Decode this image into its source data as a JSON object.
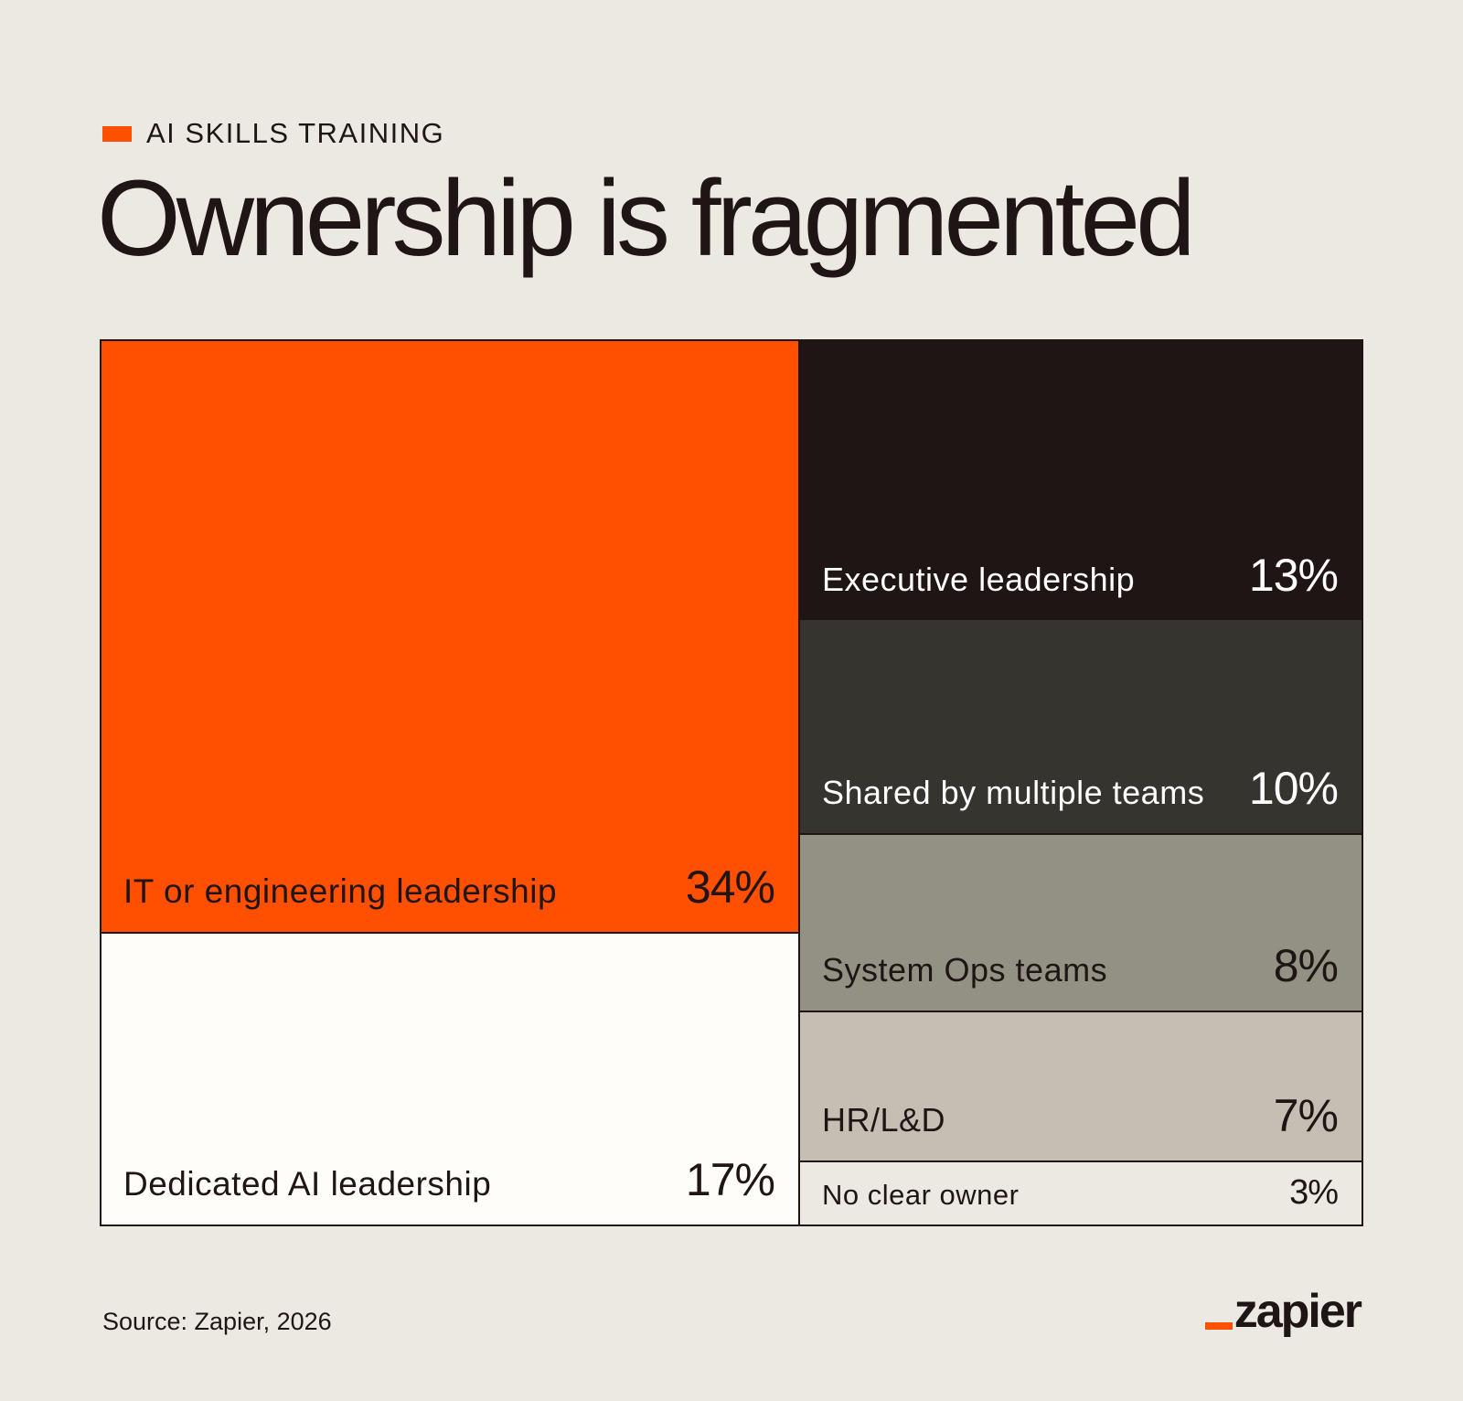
{
  "header": {
    "kicker": "AI SKILLS TRAINING",
    "title": "Ownership is fragmented"
  },
  "chart_data": {
    "type": "treemap",
    "title": "Ownership is fragmented",
    "unit": "%",
    "items": [
      {
        "label": "IT or engineering leadership",
        "value": 34,
        "display": "34%",
        "color": "#FF4F00",
        "text_color": "#201515"
      },
      {
        "label": "Dedicated AI leadership",
        "value": 17,
        "display": "17%",
        "color": "#FFFDF9",
        "text_color": "#201515"
      },
      {
        "label": "Executive leadership",
        "value": 13,
        "display": "13%",
        "color": "#201515",
        "text_color": "#FFFFFF"
      },
      {
        "label": "Shared by multiple teams",
        "value": 10,
        "display": "10%",
        "color": "#36342F",
        "text_color": "#FFFFFF"
      },
      {
        "label": "System Ops teams",
        "value": 8,
        "display": "8%",
        "color": "#939084",
        "text_color": "#201515"
      },
      {
        "label": "HR/L&D",
        "value": 7,
        "display": "7%",
        "color": "#C5BFB3",
        "text_color": "#201515"
      },
      {
        "label": "No clear owner",
        "value": 3,
        "display": "3%",
        "color": "#ECE9E3",
        "text_color": "#201515"
      }
    ]
  },
  "footer": {
    "source": "Source: Zapier, 2026",
    "logo_text": "zapier",
    "accent_color": "#FF4F00"
  }
}
